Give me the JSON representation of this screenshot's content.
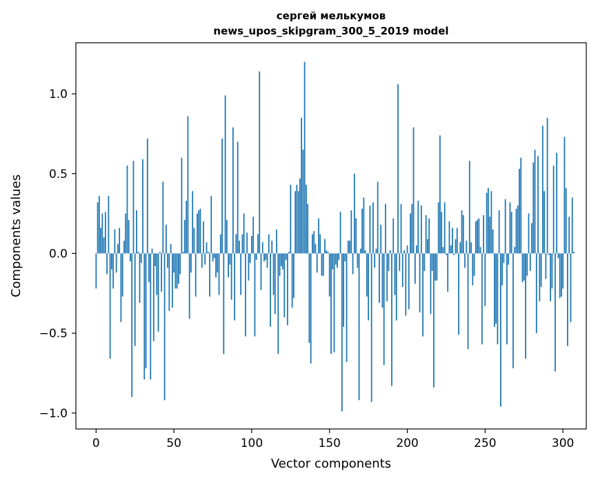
{
  "chart_data": {
    "type": "bar",
    "title": "сергей мелькумов",
    "subtitle": "news_upos_skipgram_300_5_2019 model",
    "xlabel": "Vector components",
    "ylabel": "Components values",
    "xlim": [
      -13,
      315
    ],
    "ylim": [
      -1.1,
      1.32
    ],
    "xticks": [
      0,
      50,
      100,
      150,
      200,
      250,
      300
    ],
    "yticks": [
      -1.0,
      -0.5,
      0.0,
      0.5,
      1.0
    ],
    "xtick_labels": [
      "0",
      "50",
      "100",
      "150",
      "200",
      "250",
      "300"
    ],
    "ytick_labels": [
      "−1.0",
      "−0.5",
      "0.0",
      "0.5",
      "1.0"
    ],
    "grid": false,
    "bar_color": "#1f77b4",
    "x_start": 0,
    "values": [
      -0.22,
      0.32,
      0.36,
      0.16,
      0.25,
      0.1,
      0.26,
      -0.13,
      0.36,
      -0.66,
      -0.1,
      -0.22,
      0.15,
      -0.12,
      0.06,
      0.16,
      -0.43,
      -0.27,
      0.08,
      0.25,
      0.55,
      0.21,
      -0.05,
      -0.9,
      0.58,
      -0.58,
      0.27,
      0.01,
      -0.31,
      -0.06,
      0.59,
      -0.79,
      -0.72,
      0.72,
      -0.18,
      -0.79,
      0.03,
      -0.55,
      -0.08,
      -0.26,
      -0.49,
      0.01,
      -0.24,
      0.45,
      -0.92,
      0.18,
      -0.09,
      -0.36,
      0.06,
      -0.34,
      -0.12,
      -0.22,
      -0.22,
      -0.19,
      -0.13,
      0.6,
      0.01,
      0.21,
      0.33,
      0.86,
      -0.41,
      -0.12,
      0.39,
      0.16,
      -0.27,
      0.25,
      0.27,
      0.28,
      -0.09,
      0.2,
      -0.07,
      0.07,
      0.01,
      -0.27,
      0.36,
      -0.05,
      -0.03,
      -0.15,
      -0.12,
      -0.26,
      0.12,
      0.72,
      -0.63,
      0.99,
      0.21,
      -0.15,
      -0.07,
      -0.29,
      0.79,
      -0.42,
      0.12,
      0.7,
      0.08,
      -0.26,
      0.12,
      0.25,
      -0.52,
      0.13,
      -0.17,
      -0.06,
      0.11,
      0.23,
      -0.52,
      -0.04,
      0.12,
      1.14,
      -0.23,
      0.07,
      -0.05,
      -0.04,
      -0.09,
      0.12,
      -0.46,
      0.08,
      -0.26,
      -0.38,
      0.15,
      -0.63,
      -0.14,
      -0.08,
      -0.1,
      -0.4,
      -0.04,
      -0.45,
      0.01,
      0.43,
      -0.34,
      -0.28,
      0.39,
      0.43,
      0.39,
      0.47,
      0.85,
      0.65,
      1.2,
      0.43,
      0.31,
      -0.56,
      -0.69,
      0.12,
      0.14,
      0.06,
      -0.12,
      0.22,
      0.12,
      -0.14,
      -0.14,
      0.09,
      0.02,
      0.01,
      -0.27,
      -0.63,
      -0.1,
      -0.62,
      -0.07,
      -0.09,
      -0.04,
      0.26,
      -0.99,
      -0.46,
      -0.05,
      -0.68,
      0.08,
      0.08,
      0.27,
      -0.13,
      0.5,
      0.22,
      -0.09,
      -0.92,
      0.03,
      0.28,
      0.35,
      0.02,
      -0.27,
      -0.42,
      0.3,
      -0.93,
      0.32,
      -0.09,
      0.03,
      0.45,
      -0.31,
      0.18,
      -0.34,
      -0.7,
      0.31,
      -0.3,
      -0.11,
      0.02,
      -0.83,
      0.22,
      -0.26,
      -0.42,
      1.06,
      -0.11,
      0.31,
      -0.21,
      0.02,
      -0.39,
      0.05,
      -0.35,
      0.25,
      0.31,
      0.79,
      -0.19,
      0.05,
      0.33,
      -0.37,
      0.3,
      -0.52,
      -0.11,
      0.24,
      0.09,
      0.22,
      -0.38,
      -0.11,
      -0.84,
      -0.17,
      -0.17,
      0.32,
      0.74,
      0.26,
      0.04,
      0.32,
      -0.01,
      -0.24,
      0.2,
      0.05,
      0.16,
      -0.01,
      0.09,
      0.16,
      -0.51,
      0.07,
      0.27,
      0.24,
      -0.09,
      0.08,
      -0.6,
      0.58,
      0.07,
      -0.2,
      -0.14,
      0.2,
      0.21,
      0.22,
      0.04,
      -0.57,
      0.24,
      -0.33,
      0.38,
      0.41,
      0.23,
      0.39,
      0.15,
      -0.46,
      -0.44,
      -0.57,
      0.27,
      -0.96,
      -0.2,
      -0.06,
      0.34,
      -0.57,
      -0.07,
      0.32,
      0.26,
      -0.72,
      0.04,
      0.28,
      0.3,
      0.53,
      0.6,
      -0.18,
      -0.17,
      -0.66,
      -0.14,
      0.25,
      -0.11,
      0.19,
      0.57,
      0.65,
      -0.5,
      0.61,
      -0.3,
      -0.21,
      0.8,
      0.39,
      -0.16,
      0.85,
      -0.01,
      -0.3,
      -0.22,
      0.55,
      -0.74,
      0.63,
      -0.03,
      -0.28,
      -0.27,
      -0.22,
      0.73,
      0.41,
      -0.58,
      0.23,
      -0.43,
      0.35,
      0.01
    ]
  }
}
